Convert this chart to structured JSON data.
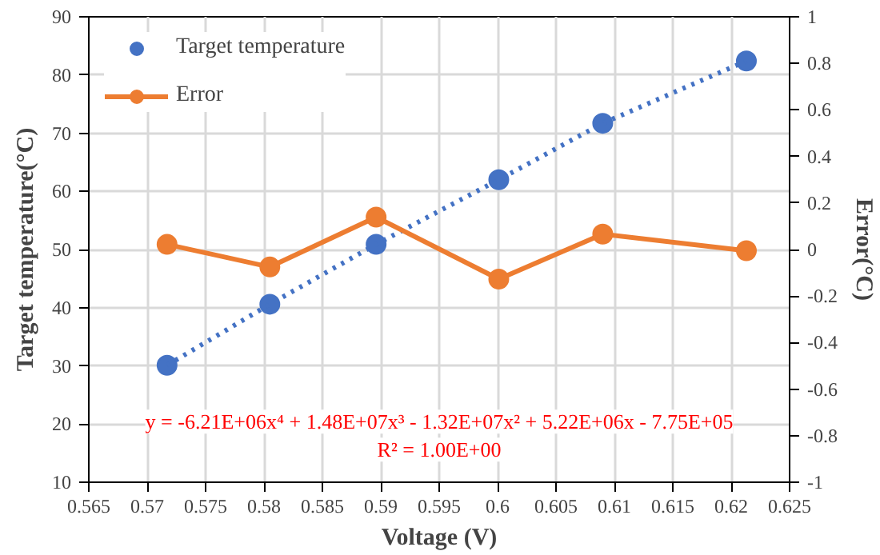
{
  "chart_data": {
    "type": "scatter",
    "xlabel": "Voltage (V)",
    "ylabel": "Target temperature(°C)",
    "y2label": "Error(°C)",
    "x": [
      0.5717,
      0.5805,
      0.5896,
      0.6001,
      0.609,
      0.6213
    ],
    "series": [
      {
        "name": "Target temperature",
        "color": "#4472c4",
        "marker": "circle",
        "values": [
          30.1,
          40.6,
          50.9,
          62.0,
          71.7,
          82.4
        ]
      },
      {
        "color": "#4472c4",
        "type": "line",
        "line_style": "dotted",
        "marker": "none",
        "x": [
          0.5717,
          0.5805,
          0.5896,
          0.6001,
          0.609,
          0.6213
        ],
        "values": [
          30.1,
          40.6,
          50.9,
          62.0,
          71.7,
          82.4
        ]
      },
      {
        "name": "Error",
        "color": "#ed7d31",
        "type": "line",
        "line_style": "solid",
        "marker": "circle",
        "axis": "y2",
        "values": [
          0.022,
          -0.075,
          0.139,
          -0.127,
          0.066,
          -0.005
        ]
      }
    ],
    "xlim": [
      0.565,
      0.625
    ],
    "xticks": [
      0.565,
      0.57,
      0.575,
      0.58,
      0.585,
      0.59,
      0.595,
      0.6,
      0.605,
      0.61,
      0.615,
      0.62,
      0.625
    ],
    "ylim": [
      10,
      90
    ],
    "yticks": [
      10,
      20,
      30,
      40,
      50,
      60,
      70,
      80,
      90
    ],
    "y2lim": [
      -1,
      1
    ],
    "y2ticks": [
      -1,
      -0.8,
      -0.6,
      -0.4,
      -0.2,
      0,
      0.2,
      0.4,
      0.6,
      0.8,
      1
    ],
    "annotations": [
      "y = -6.21E+06x⁴ + 1.48E+07x³ - 1.32E+07x² + 5.22E+06x - 7.75E+05",
      "R² = 1.00E+00"
    ],
    "grid": true,
    "legend": "top left"
  }
}
